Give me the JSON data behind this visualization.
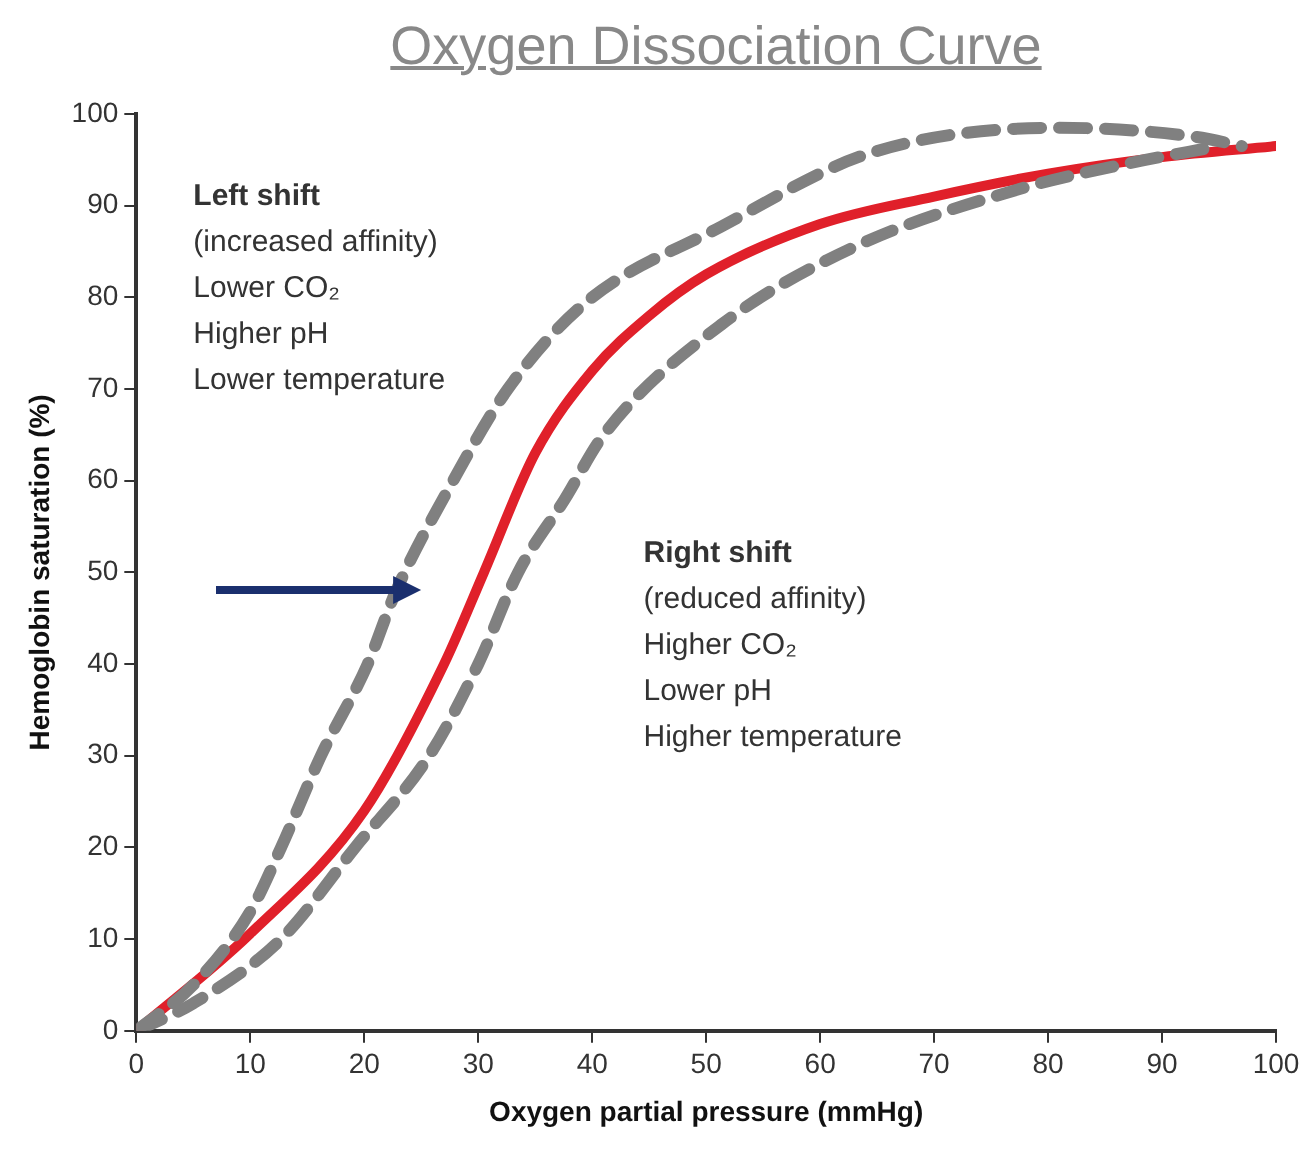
{
  "chart_data": {
    "type": "line",
    "title": "Oxygen Dissociation Curve",
    "xlabel": "Oxygen partial pressure (mmHg)",
    "ylabel": "Hemoglobin saturation (%)",
    "xlim": [
      0,
      100
    ],
    "ylim": [
      0,
      100
    ],
    "xticks": [
      0,
      10,
      20,
      30,
      40,
      50,
      60,
      70,
      80,
      90,
      100
    ],
    "yticks": [
      0,
      10,
      20,
      30,
      40,
      50,
      60,
      70,
      80,
      90,
      100
    ],
    "grid": false,
    "legend": false,
    "marker": "none",
    "annotations": [
      "Left shift",
      "(increased affinity)",
      "Lower CO₂",
      "Higher pH",
      "Lower temperature",
      "Right shift",
      "(reduced affinity)",
      "Higher CO₂",
      "Lower pH",
      "Higher temperature"
    ],
    "series": [
      {
        "color": "#808080",
        "line_style": "dashed",
        "x": [
          0,
          5,
          10,
          12.7,
          16.2,
          20.3,
          22.8,
          27.8,
          32.6,
          39.4,
          51.3,
          64.3,
          81,
          93,
          97
        ],
        "values": [
          0,
          5,
          13,
          20,
          30,
          40,
          48,
          60,
          70,
          79.4,
          87.7,
          95.7,
          98.5,
          97.5,
          96.5
        ]
      },
      {
        "color": "#808080",
        "line_style": "dashed",
        "x": [
          0,
          5,
          12.7,
          19.2,
          25.7,
          30,
          33.5,
          37.6,
          41,
          51.3,
          63,
          78,
          87,
          95
        ],
        "values": [
          0,
          3,
          10,
          20,
          30,
          40,
          50,
          58,
          65,
          77,
          85.5,
          92,
          94.6,
          96.5
        ]
      },
      {
        "color": "#e0202a",
        "line_style": "solid",
        "x": [
          0,
          10,
          20,
          27,
          30.5,
          35,
          40,
          45,
          50,
          60,
          70,
          80,
          90,
          100
        ],
        "values": [
          0,
          10.6,
          24,
          40,
          50,
          63,
          72,
          78,
          82.5,
          88,
          91,
          93.5,
          95.3,
          96.5
        ]
      }
    ]
  }
}
